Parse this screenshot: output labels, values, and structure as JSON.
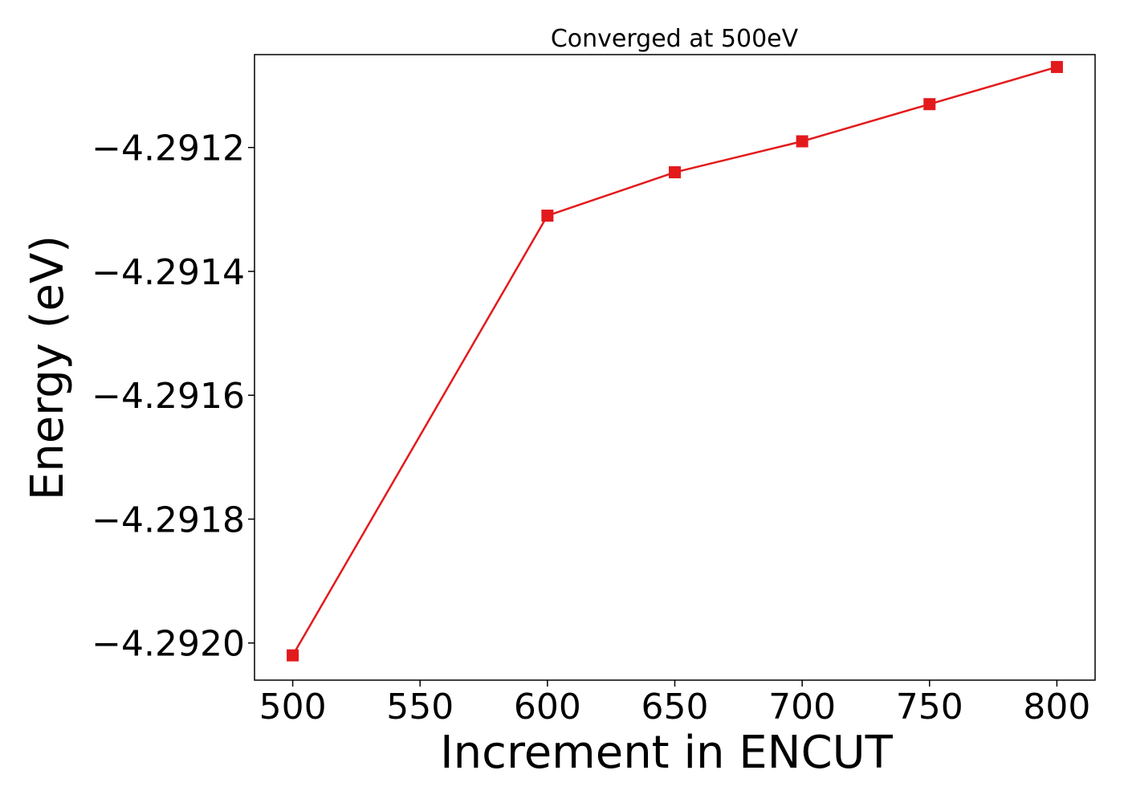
{
  "chart_data": {
    "type": "line",
    "title": "Converged at 500eV",
    "xlabel": "Increment in ENCUT",
    "ylabel": "Energy (eV)",
    "x": [
      500,
      600,
      650,
      700,
      750,
      800
    ],
    "series": [
      {
        "values": [
          -4.29202,
          -4.29131,
          -4.29124,
          -4.29119,
          -4.29113,
          -4.29107
        ],
        "color": "#e31a1c",
        "marker": "square"
      }
    ],
    "xlim": [
      485,
      815
    ],
    "ylim": [
      -4.29206,
      -4.29105
    ],
    "xticks": [
      500,
      550,
      600,
      650,
      700,
      750,
      800
    ],
    "xtick_labels": [
      "500",
      "550",
      "600",
      "650",
      "700",
      "750",
      "800"
    ],
    "yticks": [
      -4.292,
      -4.2918,
      -4.2916,
      -4.2914,
      -4.2912
    ],
    "ytick_labels": [
      "−4.2920",
      "−4.2918",
      "−4.2916",
      "−4.2914",
      "−4.2912"
    ],
    "grid": false,
    "legend": "none"
  }
}
